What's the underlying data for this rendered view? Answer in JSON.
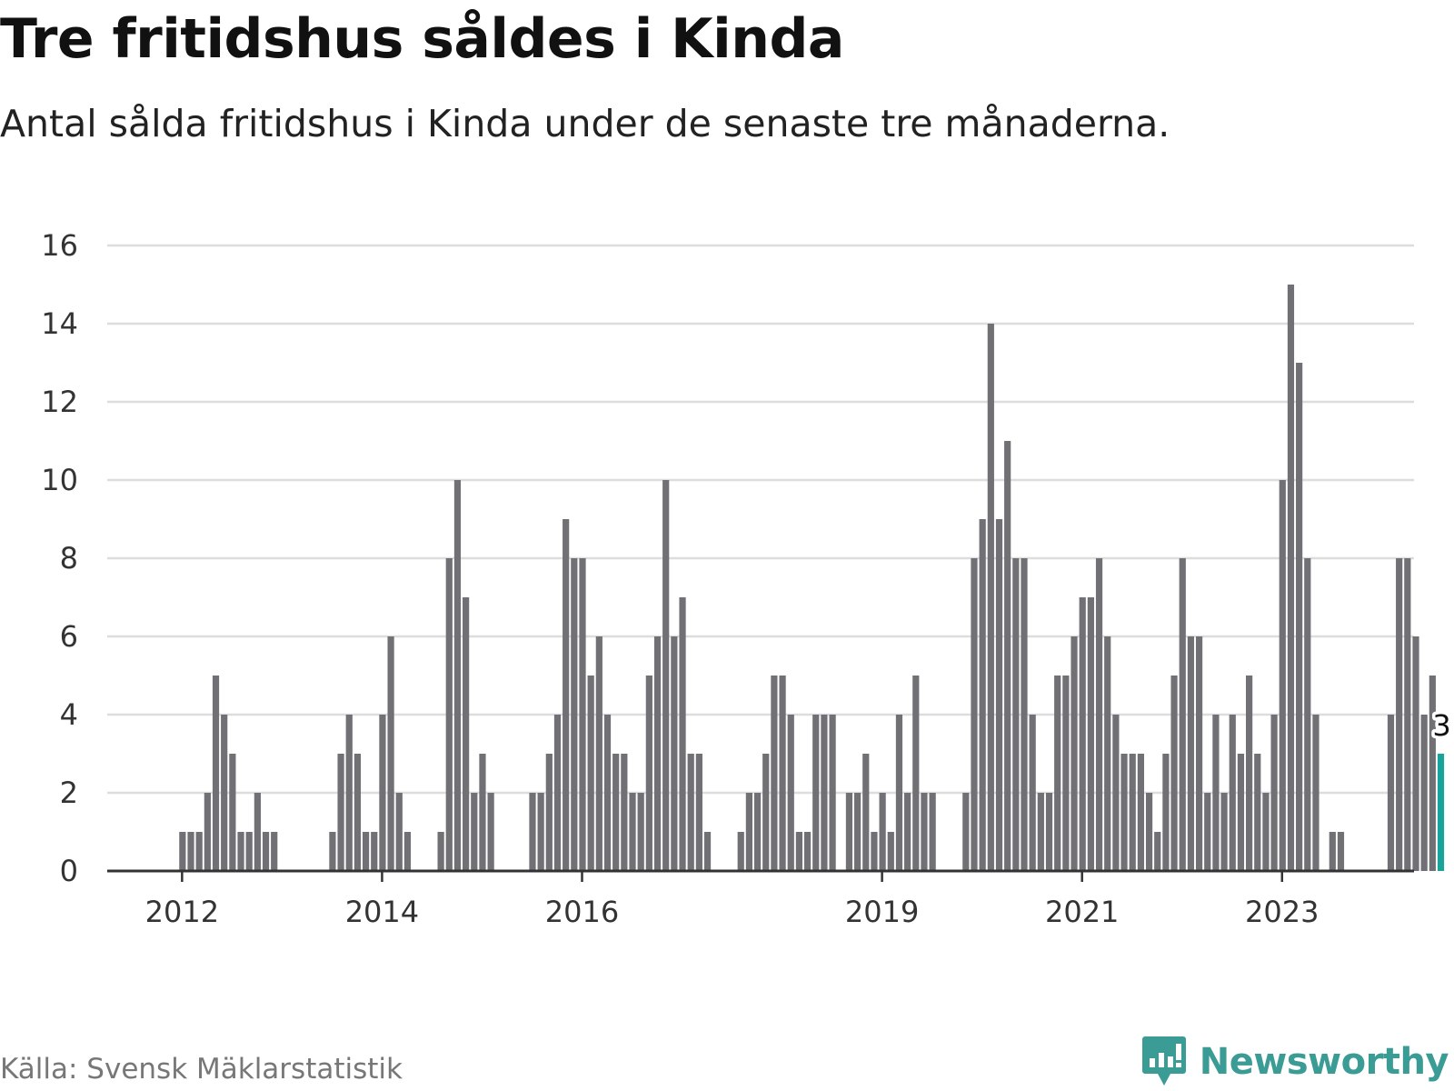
{
  "header": {
    "title": "Tre fritidshus såldes i Kinda",
    "subtitle": "Antal sålda fritidshus i Kinda under de senaste tre månaderna."
  },
  "footer": {
    "source": "Källa: Svensk Mäklarstatistik",
    "brand": "Newsworthy"
  },
  "colors": {
    "bar": "#707075",
    "highlight": "#1aa39a",
    "grid": "#dddddd",
    "axis": "#333333",
    "brand": "#3a9c94"
  },
  "chart_data": {
    "type": "bar",
    "title": "Tre fritidshus såldes i Kinda",
    "subtitle": "Antal sålda fritidshus i Kinda under de senaste tre månaderna.",
    "xlabel": "",
    "ylabel": "",
    "ylim": [
      0,
      16
    ],
    "yticks": [
      0,
      2,
      4,
      6,
      8,
      10,
      12,
      14,
      16
    ],
    "grid": true,
    "legend": "none",
    "start": "2011-11",
    "xticks": [
      {
        "label": "2012",
        "index": 2
      },
      {
        "label": "2014",
        "index": 26
      },
      {
        "label": "2016",
        "index": 50
      },
      {
        "label": "2019",
        "index": 86
      },
      {
        "label": "2021",
        "index": 110
      },
      {
        "label": "2023",
        "index": 134
      }
    ],
    "values": [
      0,
      0,
      1,
      1,
      1,
      2,
      5,
      4,
      3,
      1,
      1,
      2,
      1,
      1,
      0,
      0,
      0,
      0,
      0,
      0,
      1,
      3,
      4,
      3,
      1,
      1,
      4,
      6,
      2,
      1,
      0,
      0,
      0,
      1,
      8,
      10,
      7,
      2,
      3,
      2,
      0,
      0,
      0,
      0,
      2,
      2,
      3,
      4,
      9,
      8,
      8,
      5,
      6,
      4,
      3,
      3,
      2,
      2,
      5,
      6,
      10,
      6,
      7,
      3,
      3,
      1,
      0,
      0,
      0,
      1,
      2,
      2,
      3,
      5,
      5,
      4,
      1,
      1,
      4,
      4,
      4,
      0,
      2,
      2,
      3,
      1,
      2,
      1,
      4,
      2,
      5,
      2,
      2,
      0,
      0,
      0,
      2,
      8,
      9,
      14,
      9,
      11,
      8,
      8,
      4,
      2,
      2,
      5,
      5,
      6,
      7,
      7,
      8,
      6,
      4,
      3,
      3,
      3,
      2,
      1,
      3,
      5,
      8,
      6,
      6,
      2,
      4,
      2,
      4,
      3,
      5,
      3,
      2,
      4,
      10,
      15,
      13,
      8,
      4,
      0,
      1,
      1,
      0,
      0,
      0,
      0,
      0,
      4,
      8,
      8,
      6,
      4,
      5,
      3
    ],
    "highlight_index": 153,
    "highlight_label": "3"
  }
}
